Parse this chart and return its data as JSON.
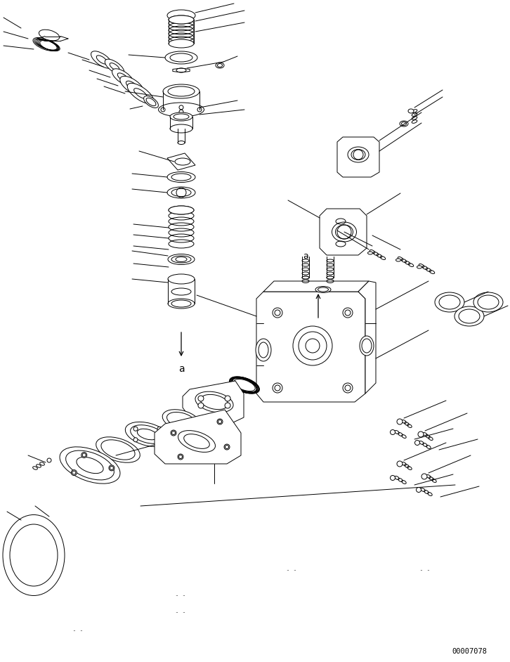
{
  "page_id": "00007078",
  "background_color": "#ffffff",
  "line_color": "#000000",
  "figure_width": 7.26,
  "figure_height": 9.42,
  "dpi": 100
}
